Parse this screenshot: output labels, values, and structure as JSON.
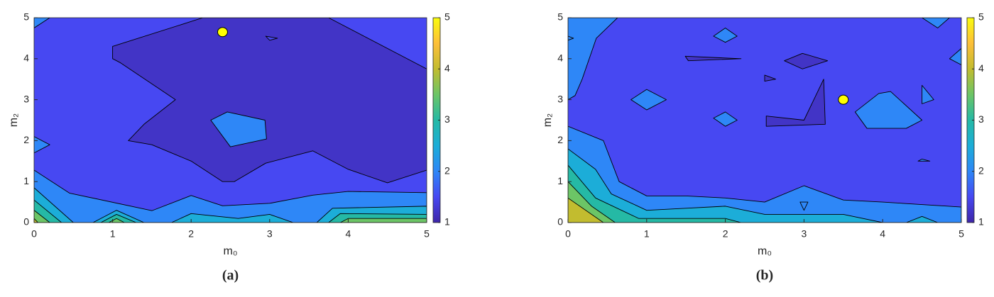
{
  "chart_data": [
    {
      "type": "contour",
      "caption": "(a)",
      "xlabel": "m₀",
      "ylabel": "m₂",
      "xlim": [
        0,
        5
      ],
      "ylim": [
        0,
        5
      ],
      "xticks": [
        0,
        1,
        2,
        3,
        4,
        5
      ],
      "yticks": [
        0,
        1,
        2,
        3,
        4,
        5
      ],
      "clim": [
        1,
        5
      ],
      "cticks": [
        1,
        2,
        3,
        4,
        5
      ],
      "colormap": [
        "#3e26a8",
        "#4748f2",
        "#2e87f7",
        "#1cadd8",
        "#25b9a5",
        "#6cc566",
        "#c2bc2f",
        "#fdbf39",
        "#f9fb0e"
      ],
      "base_level": 1.5,
      "regions": [
        {
          "level": 1.2,
          "points": [
            [
              2.15,
              5
            ],
            [
              1.0,
              4.3
            ],
            [
              1.0,
              4.0
            ],
            [
              1.1,
              3.9
            ],
            [
              1.8,
              3.0
            ],
            [
              1.4,
              2.4
            ],
            [
              1.2,
              2.0
            ],
            [
              1.5,
              1.9
            ],
            [
              2.0,
              1.5
            ],
            [
              2.4,
              1.0
            ],
            [
              2.55,
              1.0
            ],
            [
              2.95,
              1.45
            ],
            [
              3.55,
              1.75
            ],
            [
              4.0,
              1.3
            ],
            [
              4.5,
              0.97
            ],
            [
              5,
              1.28
            ],
            [
              5,
              3.75
            ],
            [
              3.75,
              5
            ]
          ]
        },
        {
          "level": 2,
          "points": [
            [
              2.46,
              2.7
            ],
            [
              2.94,
              2.5
            ],
            [
              2.96,
              2.04
            ],
            [
              2.5,
              1.85
            ],
            [
              2.25,
              2.5
            ]
          ]
        },
        {
          "level": 1.5,
          "points": [
            [
              2.95,
              4.55
            ],
            [
              3.1,
              4.5
            ],
            [
              3.0,
              4.45
            ]
          ]
        },
        {
          "level": 2,
          "points": [
            [
              0,
              5
            ],
            [
              0,
              4.75
            ],
            [
              0.2,
              5
            ]
          ]
        },
        {
          "level": 2,
          "points": [
            [
              0,
              2.1
            ],
            [
              0.2,
              1.9
            ],
            [
              0,
              1.7
            ]
          ]
        },
        {
          "level": 2,
          "points": [
            [
              0,
              1.28
            ],
            [
              0.45,
              0.72
            ],
            [
              1.5,
              0.29
            ],
            [
              2.0,
              0.66
            ],
            [
              2.4,
              0.41
            ],
            [
              3.0,
              0.47
            ],
            [
              3.55,
              0.67
            ],
            [
              4.0,
              0.76
            ],
            [
              5,
              0.73
            ],
            [
              5,
              0
            ],
            [
              0,
              0
            ]
          ]
        },
        {
          "level": 2.5,
          "points": [
            [
              0,
              0.85
            ],
            [
              0.5,
              0
            ],
            [
              0,
              0
            ]
          ]
        },
        {
          "level": 2.5,
          "points": [
            [
              0.75,
              0
            ],
            [
              1.05,
              0.3
            ],
            [
              1.4,
              0
            ]
          ]
        },
        {
          "level": 2.5,
          "points": [
            [
              1.75,
              0
            ],
            [
              2.0,
              0.22
            ],
            [
              2.6,
              0.1
            ],
            [
              3.0,
              0.2
            ],
            [
              3.3,
              0
            ]
          ]
        },
        {
          "level": 2.5,
          "points": [
            [
              3.6,
              0
            ],
            [
              3.8,
              0.35
            ],
            [
              5,
              0.4
            ],
            [
              5,
              0
            ]
          ]
        },
        {
          "level": 3,
          "points": [
            [
              0,
              0.55
            ],
            [
              0.35,
              0
            ],
            [
              0,
              0
            ]
          ]
        },
        {
          "level": 3,
          "points": [
            [
              0.85,
              0
            ],
            [
              1.05,
              0.2
            ],
            [
              1.3,
              0
            ]
          ]
        },
        {
          "level": 3,
          "points": [
            [
              3.75,
              0
            ],
            [
              3.9,
              0.22
            ],
            [
              5,
              0.2
            ],
            [
              5,
              0
            ]
          ]
        },
        {
          "level": 3.5,
          "points": [
            [
              0,
              0.3
            ],
            [
              0.2,
              0
            ],
            [
              0,
              0
            ]
          ]
        },
        {
          "level": 3.5,
          "points": [
            [
              0.95,
              0
            ],
            [
              1.05,
              0.1
            ],
            [
              1.15,
              0
            ]
          ]
        },
        {
          "level": 3.5,
          "points": [
            [
              3.9,
              0
            ],
            [
              4.0,
              0.1
            ],
            [
              5,
              0.1
            ],
            [
              5,
              0
            ]
          ]
        },
        {
          "level": 4,
          "points": [
            [
              0,
              0.1
            ],
            [
              0.05,
              0
            ],
            [
              0,
              0
            ]
          ]
        }
      ],
      "marker": {
        "x": 2.4,
        "y": 4.65,
        "color": "#ffff00"
      }
    },
    {
      "type": "contour",
      "caption": "(b)",
      "xlabel": "m₀",
      "ylabel": "m₂",
      "xlim": [
        0,
        5
      ],
      "ylim": [
        0,
        5
      ],
      "xticks": [
        0,
        1,
        2,
        3,
        4,
        5
      ],
      "yticks": [
        0,
        1,
        2,
        3,
        4,
        5
      ],
      "clim": [
        1,
        5
      ],
      "cticks": [
        1,
        2,
        3,
        4,
        5
      ],
      "colormap": [
        "#3e26a8",
        "#4748f2",
        "#2e87f7",
        "#1cadd8",
        "#25b9a5",
        "#6cc566",
        "#c2bc2f",
        "#fdbf39",
        "#f9fb0e"
      ],
      "base_level": 1.5,
      "regions": [
        {
          "level": 2,
          "points": [
            [
              0,
              5
            ],
            [
              0.63,
              5
            ],
            [
              0.36,
              4.5
            ],
            [
              0.18,
              3.5
            ],
            [
              0.09,
              3.1
            ],
            [
              0,
              3.0
            ]
          ]
        },
        {
          "level": 2,
          "points": [
            [
              0,
              2.35
            ],
            [
              0.45,
              2.0
            ],
            [
              0.55,
              1.5
            ],
            [
              0.65,
              1.0
            ],
            [
              1.0,
              0.65
            ],
            [
              1.5,
              0.65
            ],
            [
              2.0,
              0.6
            ],
            [
              2.5,
              0.5
            ],
            [
              3.0,
              0.9
            ],
            [
              3.5,
              0.55
            ],
            [
              4.0,
              0.5
            ],
            [
              5,
              0.38
            ],
            [
              5,
              0
            ],
            [
              0,
              0
            ]
          ]
        },
        {
          "level": 2.5,
          "points": [
            [
              0,
              1.8
            ],
            [
              0.35,
              1.3
            ],
            [
              0.55,
              0.7
            ],
            [
              1.0,
              0.3
            ],
            [
              1.5,
              0.35
            ],
            [
              2.0,
              0.4
            ],
            [
              2.5,
              0.2
            ],
            [
              3.5,
              0.2
            ],
            [
              4.0,
              0
            ],
            [
              0,
              0
            ]
          ]
        },
        {
          "level": 2.5,
          "points": [
            [
              4.3,
              0
            ],
            [
              4.5,
              0.15
            ],
            [
              4.7,
              0
            ]
          ]
        },
        {
          "level": 3,
          "points": [
            [
              0,
              1.4
            ],
            [
              0.35,
              0.6
            ],
            [
              0.9,
              0.1
            ],
            [
              2.0,
              0.1
            ],
            [
              2.2,
              0
            ],
            [
              0,
              0
            ]
          ]
        },
        {
          "level": 3.5,
          "points": [
            [
              0,
              1.0
            ],
            [
              0.3,
              0.4
            ],
            [
              0.6,
              0
            ],
            [
              0,
              0
            ]
          ]
        },
        {
          "level": 4,
          "points": [
            [
              0,
              0.6
            ],
            [
              0.45,
              0
            ],
            [
              0,
              0
            ]
          ]
        },
        {
          "level": 2,
          "points": [
            [
              0.8,
              3.0
            ],
            [
              1.0,
              3.25
            ],
            [
              1.25,
              3.0
            ],
            [
              1.0,
              2.75
            ]
          ]
        },
        {
          "level": 2,
          "points": [
            [
              1.85,
              4.55
            ],
            [
              2.0,
              4.75
            ],
            [
              2.15,
              4.55
            ],
            [
              2.0,
              4.4
            ]
          ]
        },
        {
          "level": 2,
          "points": [
            [
              1.85,
              2.55
            ],
            [
              2.0,
              2.7
            ],
            [
              2.15,
              2.5
            ],
            [
              2.0,
              2.35
            ]
          ]
        },
        {
          "level": 2,
          "points": [
            [
              3.95,
              3.15
            ],
            [
              4.1,
              3.2
            ],
            [
              4.5,
              2.5
            ],
            [
              4.3,
              2.3
            ],
            [
              3.8,
              2.3
            ],
            [
              3.65,
              2.7
            ]
          ]
        },
        {
          "level": 2,
          "points": [
            [
              4.5,
              3.35
            ],
            [
              4.65,
              3.0
            ],
            [
              4.5,
              2.9
            ]
          ]
        },
        {
          "level": 2,
          "points": [
            [
              4.45,
              1.5
            ],
            [
              4.5,
              1.55
            ],
            [
              4.6,
              1.5
            ]
          ]
        },
        {
          "level": 2,
          "points": [
            [
              4.5,
              5
            ],
            [
              4.7,
              4.75
            ],
            [
              4.85,
              5
            ]
          ]
        },
        {
          "level": 2,
          "points": [
            [
              5,
              4.25
            ],
            [
              4.85,
              4.0
            ],
            [
              5,
              3.85
            ]
          ]
        },
        {
          "level": 2,
          "points": [
            [
              0,
              4.55
            ],
            [
              0.07,
              4.5
            ],
            [
              0,
              4.45
            ]
          ]
        },
        {
          "level": 2,
          "points": [
            [
              2.95,
              0.5
            ],
            [
              3.0,
              0.3
            ],
            [
              3.05,
              0.5
            ]
          ]
        },
        {
          "level": 1.2,
          "points": [
            [
              2.98,
              4.13
            ],
            [
              3.3,
              3.95
            ],
            [
              2.98,
              3.75
            ],
            [
              2.75,
              3.95
            ]
          ]
        },
        {
          "level": 1.2,
          "points": [
            [
              1.49,
              4.06
            ],
            [
              2.2,
              4.0
            ],
            [
              1.53,
              3.95
            ]
          ]
        },
        {
          "level": 1.2,
          "points": [
            [
              2.5,
              3.6
            ],
            [
              2.64,
              3.5
            ],
            [
              2.5,
              3.45
            ]
          ]
        },
        {
          "level": 1.2,
          "points": [
            [
              2.52,
              2.6
            ],
            [
              3.0,
              2.5
            ],
            [
              3.25,
              3.5
            ],
            [
              3.27,
              2.4
            ],
            [
              2.52,
              2.35
            ]
          ]
        }
      ],
      "marker": {
        "x": 3.5,
        "y": 3.0,
        "color": "#ffff00"
      }
    }
  ]
}
